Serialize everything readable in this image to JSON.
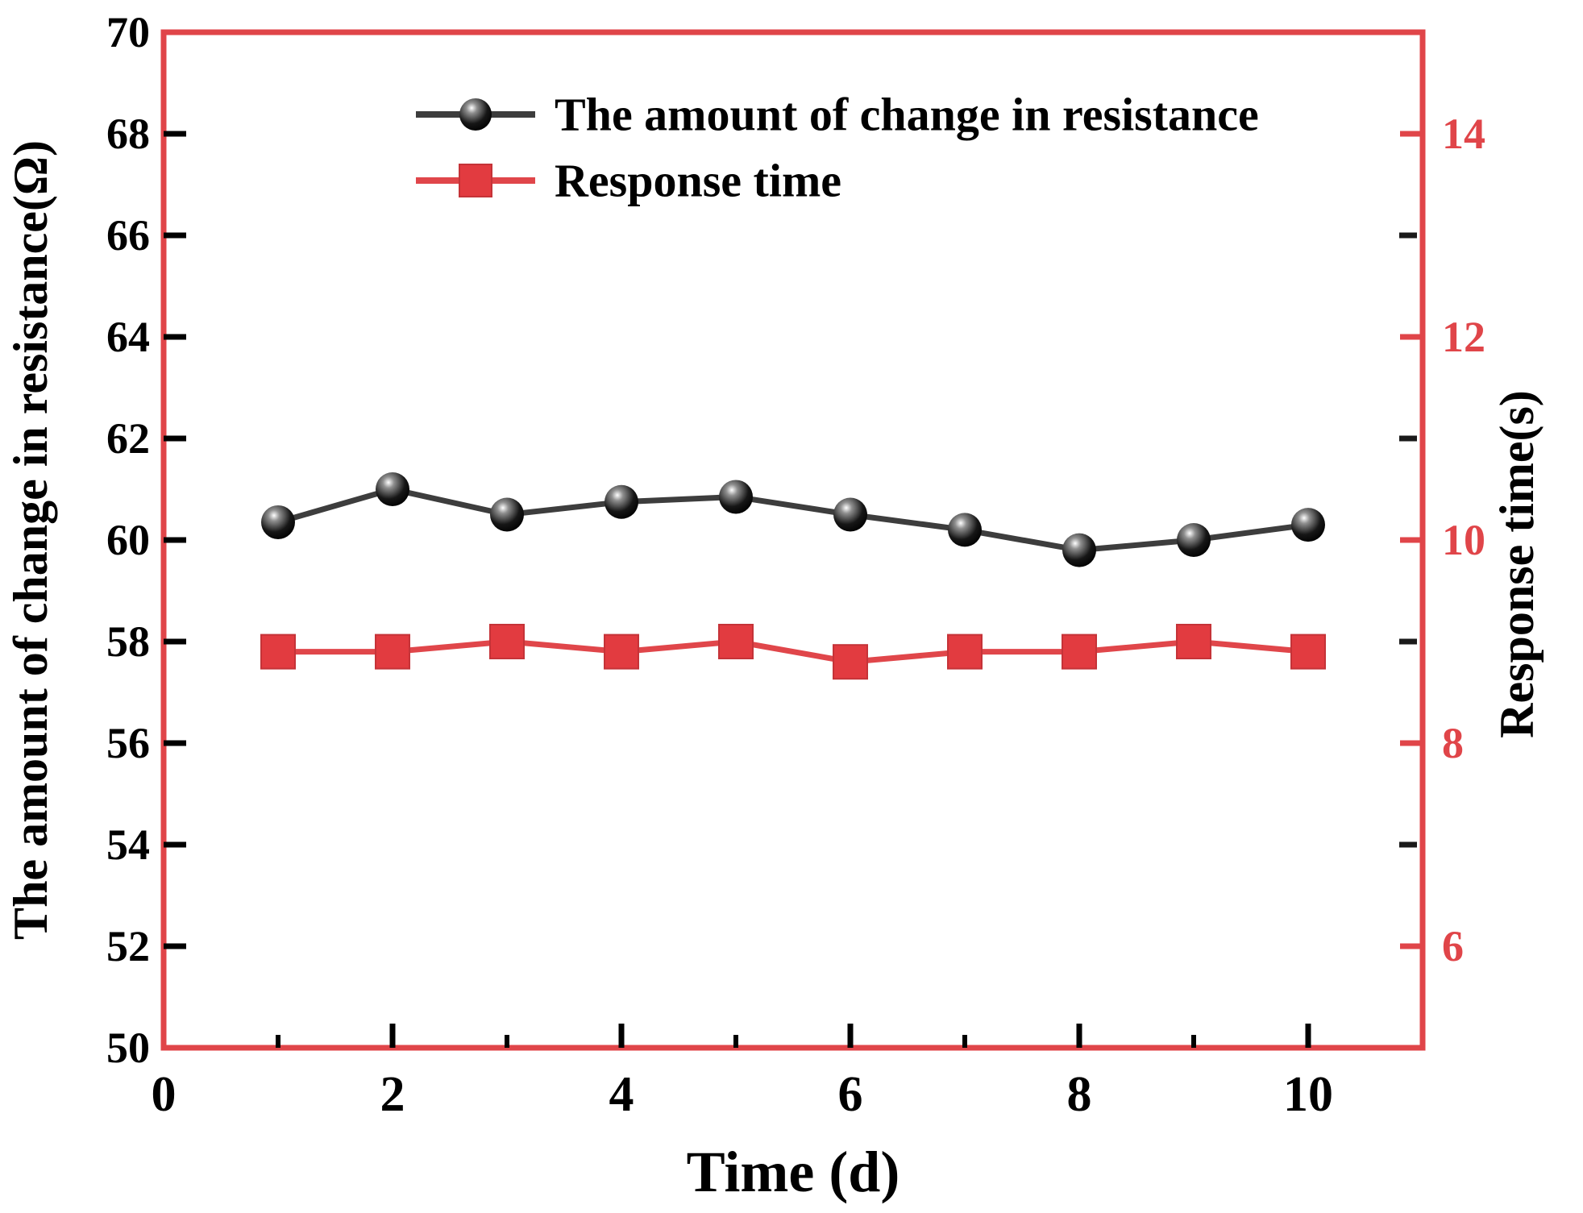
{
  "figure": {
    "background": "#ffffff",
    "border_color": "#e04549"
  },
  "chart_data": {
    "type": "line",
    "title": "",
    "xlabel": "Time (d)",
    "grid": false,
    "legend_position": "top-center-inside",
    "x": [
      1,
      2,
      3,
      4,
      5,
      6,
      7,
      8,
      9,
      10
    ],
    "x_axis": {
      "lim": [
        0,
        11
      ],
      "labeled_ticks": [
        0,
        2,
        4,
        6,
        8,
        10
      ],
      "minor_ticks": [
        1,
        3,
        5,
        7,
        9
      ],
      "tick_color": "#000000"
    },
    "left_axis": {
      "label": "The amount of change in resistance(Ω)",
      "lim": [
        50,
        70
      ],
      "labeled_ticks": [
        50,
        52,
        54,
        56,
        58,
        60,
        62,
        64,
        66,
        68,
        70
      ],
      "tick_color": "#000000",
      "label_color": "#000000"
    },
    "right_axis": {
      "label": "Response time(s)",
      "lim": [
        5,
        15
      ],
      "labeled_ticks": [
        6,
        8,
        10,
        12,
        14
      ],
      "minor_ticks": [
        7,
        9,
        11,
        13
      ],
      "tick_color": "#e04549",
      "minor_tick_color": "#1a1a1a",
      "label_color": "#e04549"
    },
    "series": [
      {
        "name": "The amount of change in resistance",
        "axis": "left",
        "marker": "circle",
        "line_color": "#3d3d3d",
        "marker_color": "#000000",
        "values": [
          60.35,
          61.0,
          60.5,
          60.75,
          60.85,
          60.5,
          60.2,
          59.8,
          60.0,
          60.3
        ]
      },
      {
        "name": "Response time",
        "axis": "right",
        "marker": "square",
        "line_color": "#e0464a",
        "marker_color": "#e23b40",
        "values": [
          8.9,
          8.9,
          9.0,
          8.9,
          9.0,
          8.8,
          8.9,
          8.9,
          9.0,
          8.9
        ]
      }
    ]
  }
}
